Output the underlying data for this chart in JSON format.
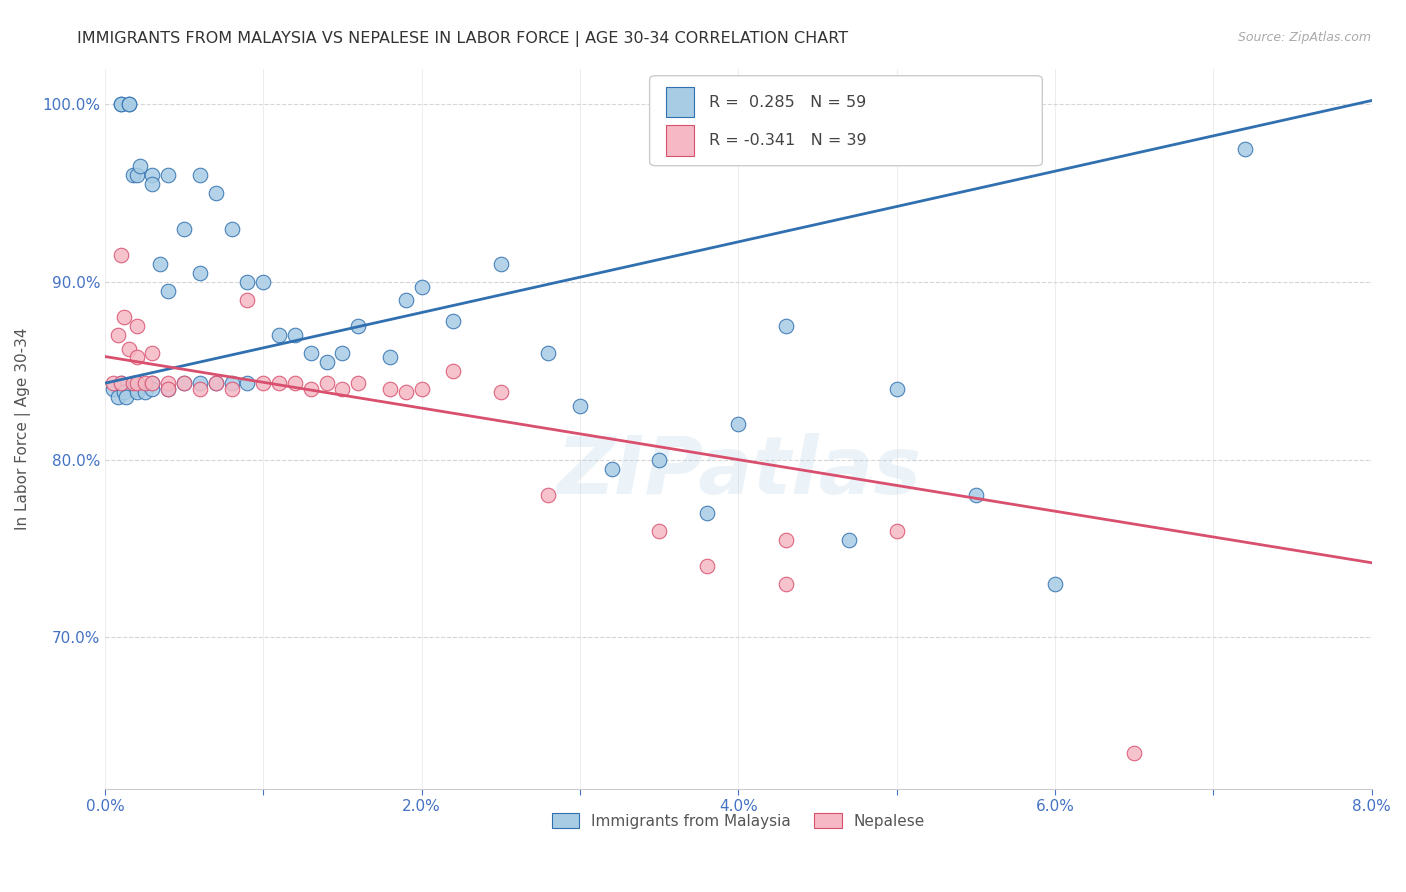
{
  "title": "IMMIGRANTS FROM MALAYSIA VS NEPALESE IN LABOR FORCE | AGE 30-34 CORRELATION CHART",
  "source": "Source: ZipAtlas.com",
  "ylabel": "In Labor Force | Age 30-34",
  "xlim": [
    0.0,
    0.08
  ],
  "ylim": [
    0.615,
    1.02
  ],
  "yticks": [
    0.7,
    0.8,
    0.9,
    1.0
  ],
  "ytick_labels": [
    "70.0%",
    "80.0%",
    "90.0%",
    "100.0%"
  ],
  "xticks": [
    0.0,
    0.01,
    0.02,
    0.03,
    0.04,
    0.05,
    0.06,
    0.07,
    0.08
  ],
  "xtick_labels": [
    "0.0%",
    "",
    "2.0%",
    "",
    "4.0%",
    "",
    "6.0%",
    "",
    "8.0%"
  ],
  "blue_R": 0.285,
  "blue_N": 59,
  "pink_R": -0.341,
  "pink_N": 39,
  "blue_color": "#a8cce4",
  "pink_color": "#f5b8c4",
  "blue_line_color": "#3070b0",
  "pink_line_color": "#d94f6e",
  "legend_blue_label": "Immigrants from Malaysia",
  "legend_pink_label": "Nepalese",
  "watermark_text": "ZIPatlas",
  "blue_line_y0": 0.843,
  "blue_line_y1": 1.002,
  "pink_line_y0": 0.858,
  "pink_line_y1": 0.742,
  "axis_color": "#4472c4",
  "blue_x": [
    0.0005,
    0.0008,
    0.001,
    0.001,
    0.001,
    0.0012,
    0.0013,
    0.0015,
    0.0015,
    0.0018,
    0.002,
    0.002,
    0.002,
    0.002,
    0.0022,
    0.0025,
    0.003,
    0.003,
    0.003,
    0.003,
    0.0035,
    0.004,
    0.004,
    0.004,
    0.005,
    0.005,
    0.006,
    0.006,
    0.006,
    0.007,
    0.007,
    0.008,
    0.008,
    0.009,
    0.009,
    0.01,
    0.011,
    0.012,
    0.013,
    0.014,
    0.015,
    0.016,
    0.018,
    0.019,
    0.02,
    0.022,
    0.025,
    0.028,
    0.03,
    0.032,
    0.035,
    0.038,
    0.04,
    0.043,
    0.047,
    0.05,
    0.055,
    0.06,
    0.072
  ],
  "blue_y": [
    0.84,
    0.835,
    1.0,
    1.0,
    0.843,
    0.838,
    0.835,
    1.0,
    1.0,
    0.96,
    0.96,
    0.843,
    0.84,
    0.838,
    0.965,
    0.838,
    0.96,
    0.955,
    0.843,
    0.84,
    0.91,
    0.96,
    0.895,
    0.84,
    0.93,
    0.843,
    0.96,
    0.905,
    0.843,
    0.95,
    0.843,
    0.93,
    0.843,
    0.9,
    0.843,
    0.9,
    0.87,
    0.87,
    0.86,
    0.855,
    0.86,
    0.875,
    0.858,
    0.89,
    0.897,
    0.878,
    0.91,
    0.86,
    0.83,
    0.795,
    0.8,
    0.77,
    0.82,
    0.875,
    0.755,
    0.84,
    0.78,
    0.73,
    0.975
  ],
  "pink_x": [
    0.0005,
    0.0008,
    0.001,
    0.001,
    0.0012,
    0.0015,
    0.0018,
    0.002,
    0.002,
    0.002,
    0.0025,
    0.003,
    0.003,
    0.004,
    0.004,
    0.005,
    0.006,
    0.007,
    0.008,
    0.009,
    0.01,
    0.011,
    0.012,
    0.013,
    0.014,
    0.015,
    0.016,
    0.018,
    0.019,
    0.02,
    0.022,
    0.025,
    0.028,
    0.035,
    0.038,
    0.043,
    0.043,
    0.05,
    0.065
  ],
  "pink_y": [
    0.843,
    0.87,
    0.915,
    0.843,
    0.88,
    0.862,
    0.843,
    0.875,
    0.858,
    0.843,
    0.843,
    0.86,
    0.843,
    0.843,
    0.84,
    0.843,
    0.84,
    0.843,
    0.84,
    0.89,
    0.843,
    0.843,
    0.843,
    0.84,
    0.843,
    0.84,
    0.843,
    0.84,
    0.838,
    0.84,
    0.85,
    0.838,
    0.78,
    0.76,
    0.74,
    0.73,
    0.755,
    0.76,
    0.635
  ]
}
